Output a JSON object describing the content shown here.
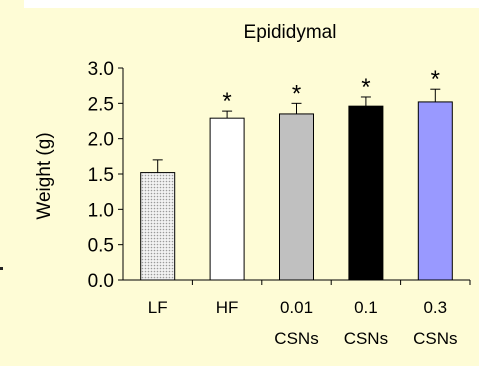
{
  "chart_data": {
    "type": "bar",
    "title": "Epididymal",
    "ylabel": "Weight (g)",
    "xlabel": "",
    "ylim": [
      0,
      3.0
    ],
    "yticks": [
      "0.0",
      "0.5",
      "1.0",
      "1.5",
      "2.0",
      "2.5",
      "3.0"
    ],
    "categories": [
      [
        "LF"
      ],
      [
        "HF"
      ],
      [
        "0.01",
        "CSNs"
      ],
      [
        "0.1",
        "CSNs"
      ],
      [
        "0.3",
        "CSNs"
      ]
    ],
    "values": [
      1.52,
      2.29,
      2.35,
      2.46,
      2.52
    ],
    "errors": [
      0.18,
      0.1,
      0.15,
      0.13,
      0.18
    ],
    "significance": [
      "",
      "*",
      "*",
      "*",
      "*"
    ],
    "colors": [
      "#e6e6e6",
      "#ffffff",
      "#c0c0c0",
      "#000000",
      "#9999ff"
    ],
    "patterns": [
      "dots",
      "none",
      "none",
      "none",
      "none"
    ]
  }
}
